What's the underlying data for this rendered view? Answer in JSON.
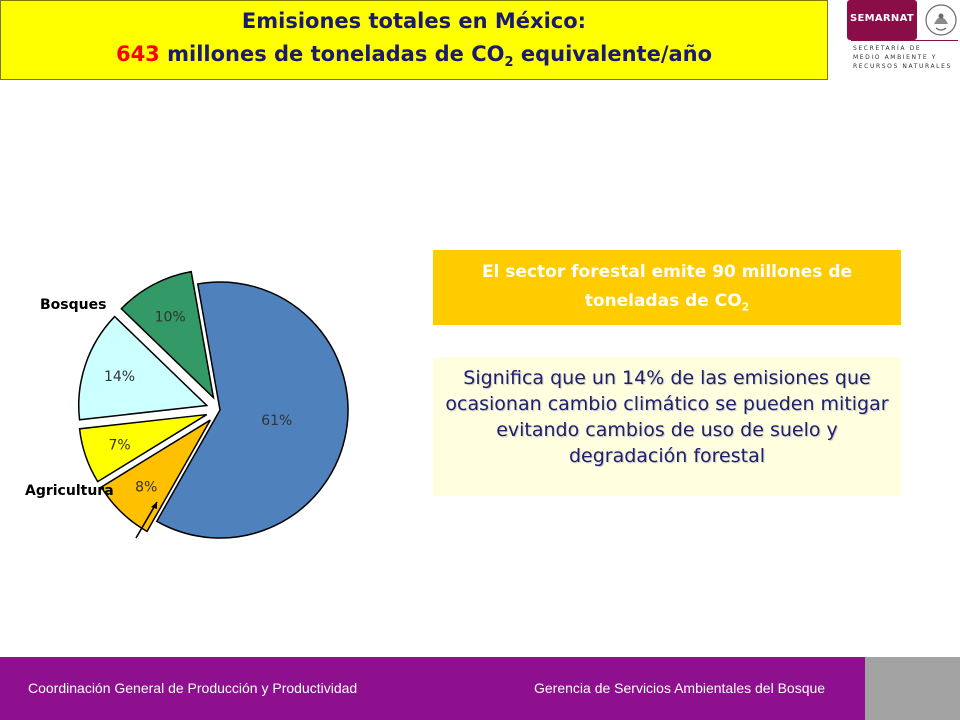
{
  "header": {
    "title_line1": "Emisiones totales en México:",
    "title_value": "643",
    "title_line2_pre": "millones de toneladas de CO",
    "title_line2_sub": "2",
    "title_line2_post": "equivalente/año",
    "value_color": "#ff0000"
  },
  "logo": {
    "badge": "SEMARNAT",
    "lines": [
      "SECRETARÍA DE",
      "MEDIO AMBIENTE Y",
      "RECURSOS NATURALES"
    ]
  },
  "chart_data": {
    "type": "pie",
    "values": [
      61,
      8,
      7,
      14,
      10
    ],
    "value_labels": [
      "61%",
      "8%",
      "7%",
      "14%",
      "10%"
    ],
    "colors": [
      "#4f81bd",
      "#ffc000",
      "#ffff00",
      "#ccffff",
      "#339966"
    ],
    "exploded": [
      false,
      true,
      true,
      true,
      true
    ],
    "category_labels": [
      "Bosques",
      "Agricultura"
    ]
  },
  "info": {
    "forestal_pre": "El sector forestal emite 90 millones de toneladas de CO",
    "forestal_sub": "2",
    "significa": "Significa que un 14% de las emisiones que ocasionan cambio climático se pueden mitigar evitando cambios de uso de suelo y degradación forestal"
  },
  "footer": {
    "left": "Coordinación General de Producción y Productividad",
    "right": "Gerencia de Servicios Ambientales del Bosque"
  }
}
